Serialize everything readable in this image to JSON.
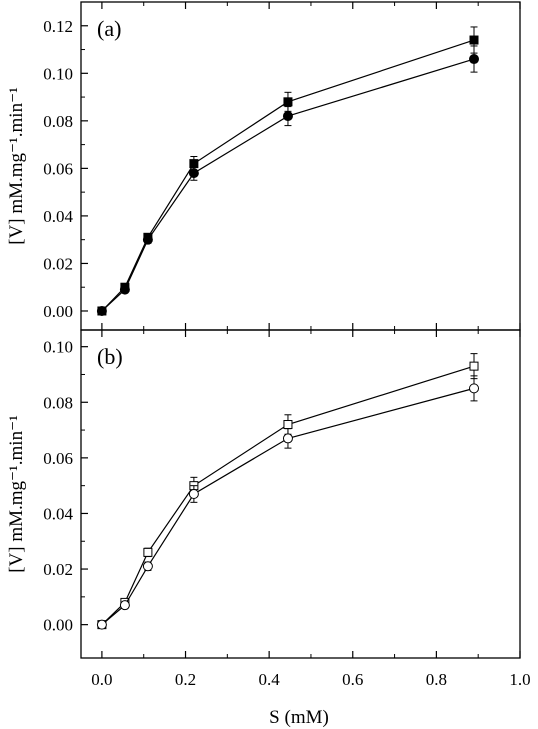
{
  "chart_data": [
    {
      "type": "line",
      "panel_label": "(a)",
      "ylabel": "[V] mM.mg⁻¹.min⁻¹",
      "xlim": [
        -0.05,
        1.0
      ],
      "ylim": [
        -0.008,
        0.13
      ],
      "yticks": [
        0.0,
        0.02,
        0.04,
        0.06,
        0.08,
        0.1,
        0.12
      ],
      "ytick_labels": [
        "0.00",
        "0.02",
        "0.04",
        "0.06",
        "0.08",
        "0.10",
        "0.12"
      ],
      "grid": false,
      "series": [
        {
          "marker": "filled-square",
          "x": [
            0.0,
            0.055,
            0.11,
            0.22,
            0.445,
            0.89
          ],
          "y": [
            0.0,
            0.01,
            0.031,
            0.062,
            0.088,
            0.114
          ],
          "err": [
            0.0005,
            0.001,
            0.0015,
            0.003,
            0.004,
            0.0055
          ]
        },
        {
          "marker": "filled-circle",
          "x": [
            0.0,
            0.055,
            0.11,
            0.22,
            0.445,
            0.89
          ],
          "y": [
            0.0,
            0.009,
            0.03,
            0.058,
            0.082,
            0.106
          ],
          "err": [
            0.0005,
            0.001,
            0.0015,
            0.003,
            0.004,
            0.0055
          ]
        }
      ]
    },
    {
      "type": "line",
      "panel_label": "(b)",
      "xlabel": "S (mM)",
      "ylabel": "[V] mM.mg⁻¹.min⁻¹",
      "xlim": [
        -0.05,
        1.0
      ],
      "xticks": [
        0.0,
        0.2,
        0.4,
        0.6,
        0.8,
        1.0
      ],
      "xtick_labels": [
        "0.0",
        "0.2",
        "0.4",
        "0.6",
        "0.8",
        "1.0"
      ],
      "ylim": [
        -0.012,
        0.106
      ],
      "yticks": [
        0.0,
        0.02,
        0.04,
        0.06,
        0.08,
        0.1
      ],
      "ytick_labels": [
        "0.00",
        "0.02",
        "0.04",
        "0.06",
        "0.08",
        "0.10"
      ],
      "grid": false,
      "series": [
        {
          "marker": "open-square",
          "x": [
            0.0,
            0.055,
            0.11,
            0.22,
            0.445,
            0.89
          ],
          "y": [
            0.0,
            0.008,
            0.026,
            0.05,
            0.072,
            0.093
          ],
          "err": [
            0.0005,
            0.001,
            0.0015,
            0.003,
            0.0035,
            0.0045
          ]
        },
        {
          "marker": "open-circle",
          "x": [
            0.0,
            0.055,
            0.11,
            0.22,
            0.445,
            0.89
          ],
          "y": [
            0.0,
            0.007,
            0.021,
            0.047,
            0.067,
            0.085
          ],
          "err": [
            0.0005,
            0.001,
            0.0015,
            0.003,
            0.0035,
            0.0045
          ]
        }
      ]
    }
  ]
}
